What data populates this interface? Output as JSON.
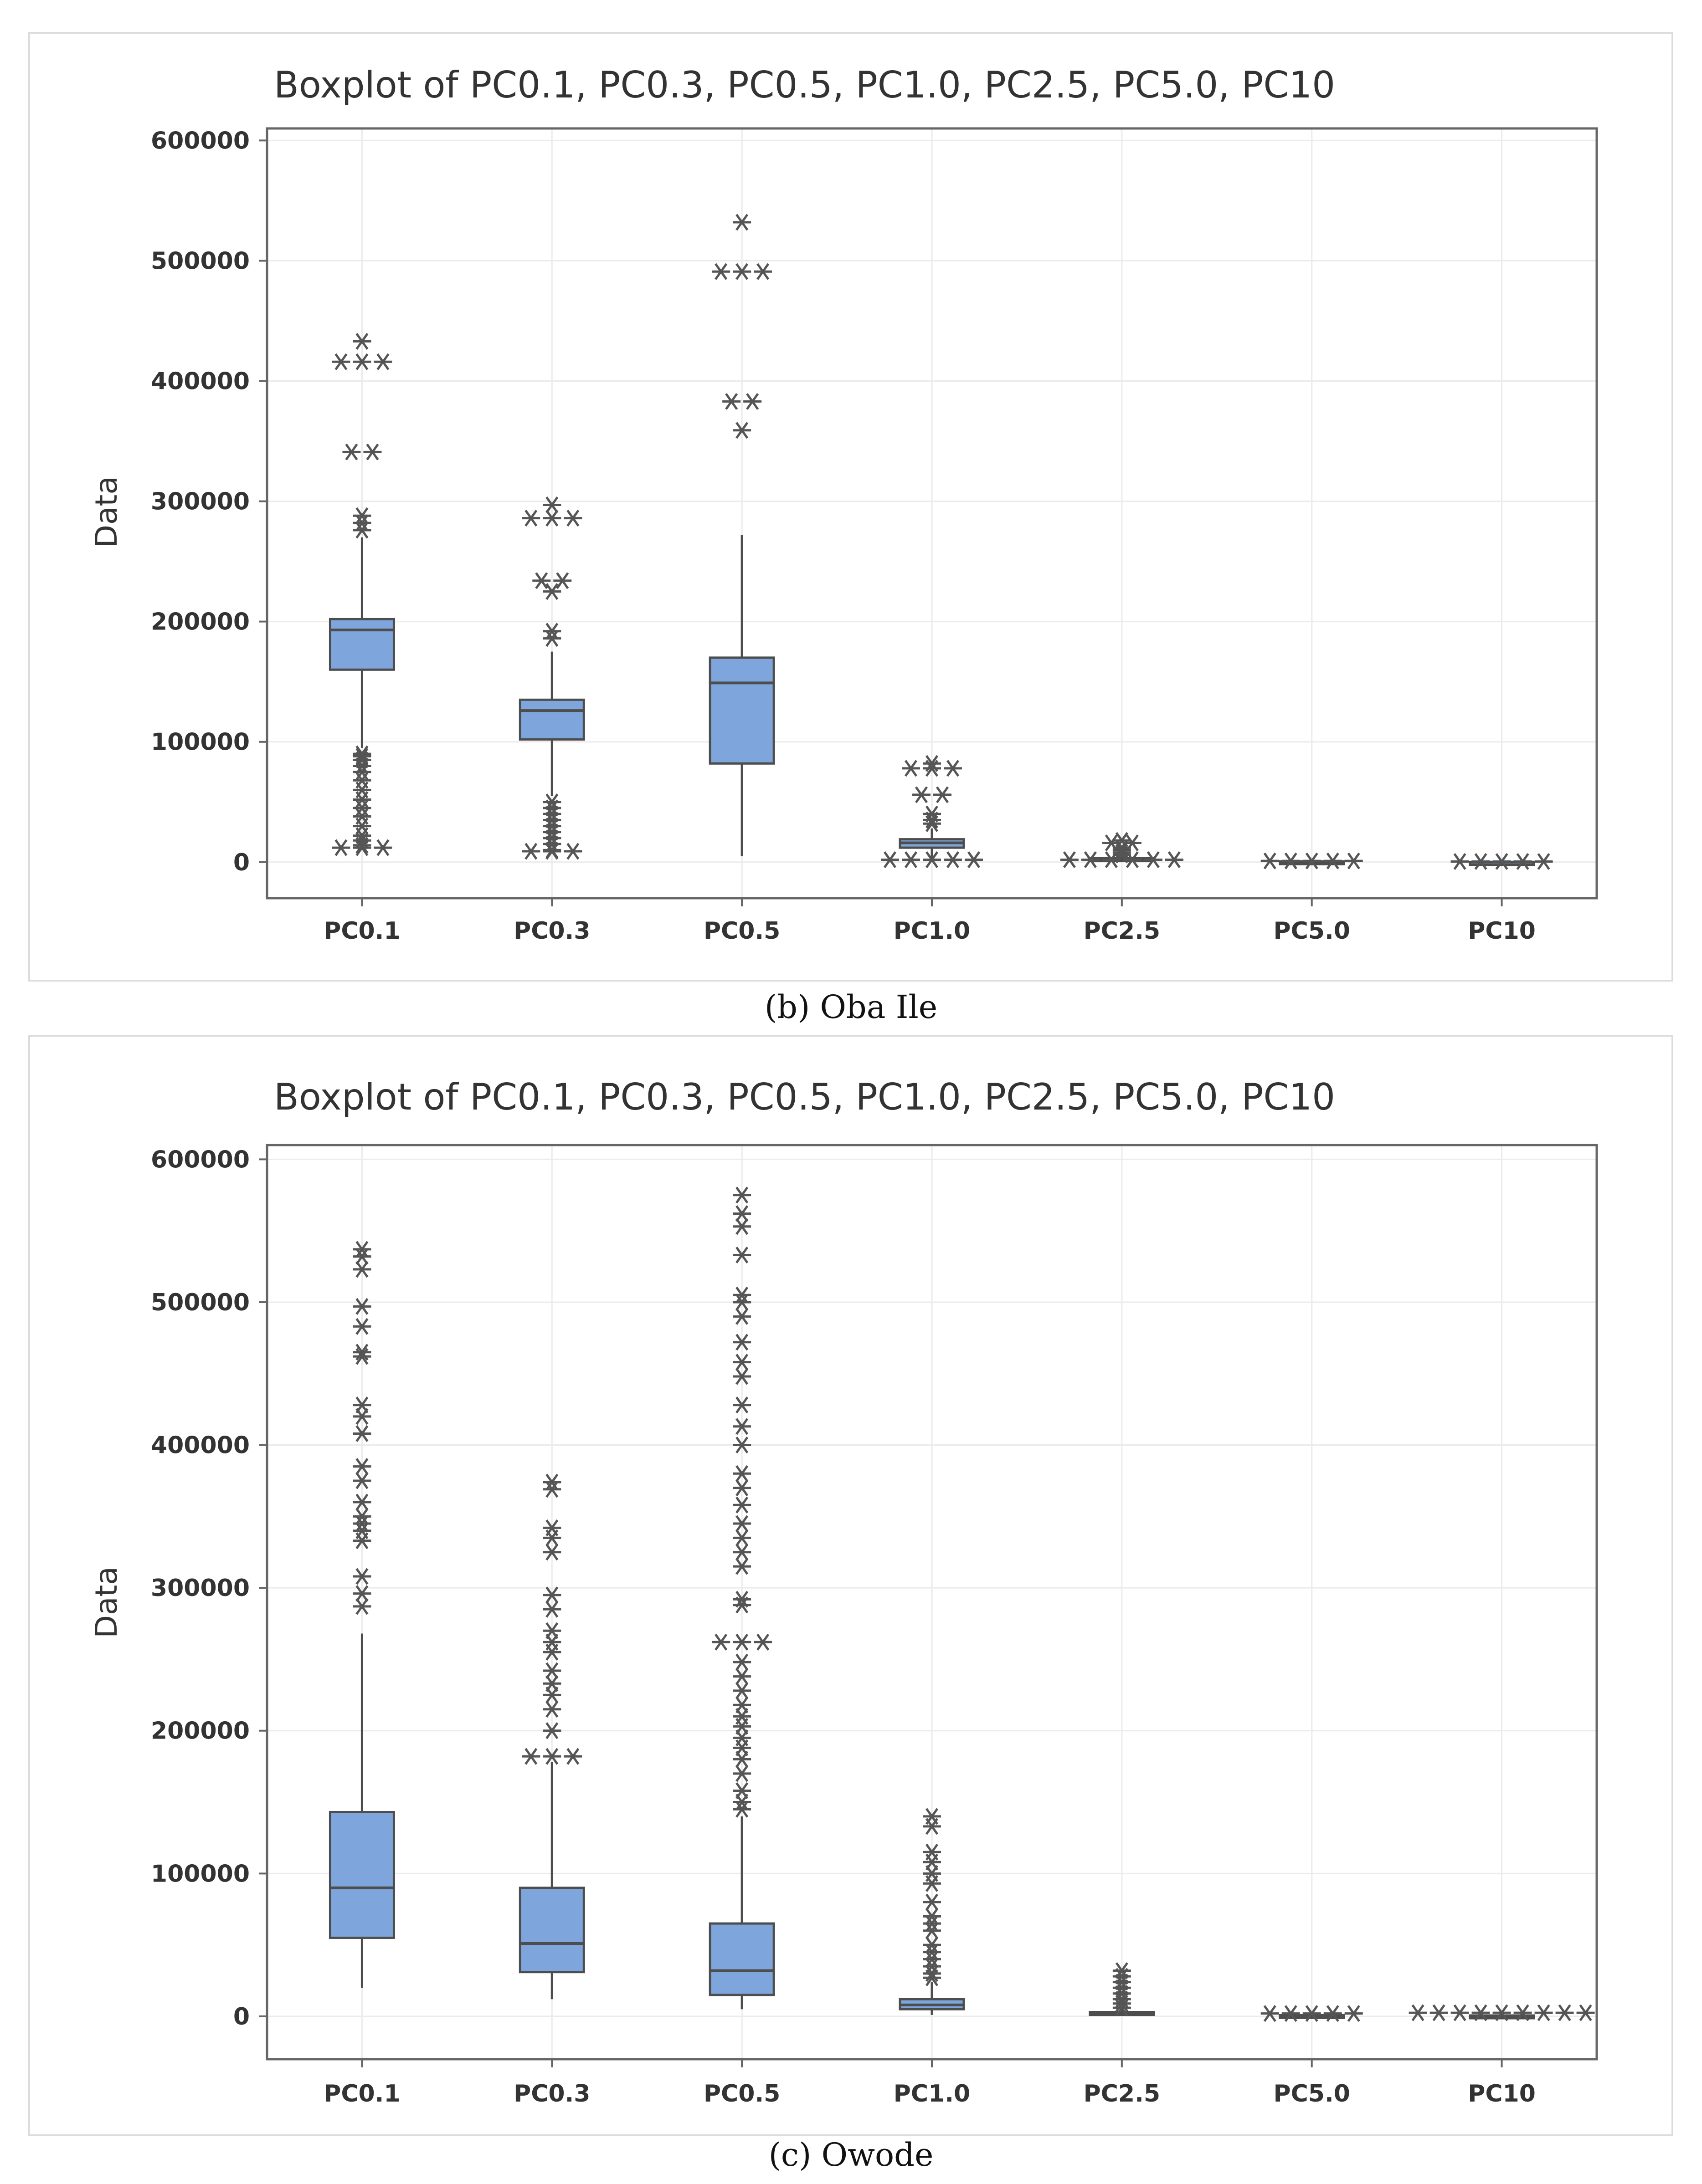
{
  "chart_data": [
    {
      "type": "boxplot",
      "title": "Boxplot of PC0.1, PC0.3, PC0.5, PC1.0, PC2.5, PC5.0, PC10",
      "caption": "(b) Oba Ile",
      "ylabel": "Data",
      "xlabel": "",
      "ylim": [
        -30000,
        610000
      ],
      "yticks": [
        0,
        100000,
        200000,
        300000,
        400000,
        500000,
        600000
      ],
      "ytick_labels": [
        "0",
        "100000",
        "200000",
        "300000",
        "400000",
        "500000",
        "600000"
      ],
      "categories": [
        "PC0.1",
        "PC0.3",
        "PC0.5",
        "PC1.0",
        "PC2.5",
        "PC5.0",
        "PC10"
      ],
      "boxes": [
        {
          "name": "PC0.1",
          "q1": 160000,
          "median": 193000,
          "q3": 202000,
          "whisker_low": 95000,
          "whisker_high": 270000,
          "outliers": [
            433000,
            416000,
            416000,
            416000,
            341000,
            341000,
            288000,
            282000,
            276000,
            90000,
            88000,
            85000,
            80000,
            75000,
            68000,
            60000,
            52000,
            45000,
            38000,
            30000,
            22000,
            18000,
            14000,
            12000,
            12000,
            12000
          ]
        },
        {
          "name": "PC0.3",
          "q1": 102000,
          "median": 126000,
          "q3": 135000,
          "whisker_low": 55000,
          "whisker_high": 175000,
          "outliers": [
            297000,
            286000,
            286000,
            286000,
            234000,
            234000,
            225000,
            192000,
            186000,
            50000,
            45000,
            40000,
            35000,
            30000,
            25000,
            20000,
            15000,
            10000,
            9000,
            9000,
            9000
          ]
        },
        {
          "name": "PC0.5",
          "q1": 82000,
          "median": 149000,
          "q3": 170000,
          "whisker_low": 5000,
          "whisker_high": 272000,
          "outliers": [
            532000,
            491000,
            491000,
            491000,
            383000,
            383000,
            359000
          ]
        },
        {
          "name": "PC1.0",
          "q1": 12000,
          "median": 16000,
          "q3": 19000,
          "whisker_low": 2000,
          "whisker_high": 28000,
          "outliers": [
            82000,
            78000,
            78000,
            78000,
            56000,
            56000,
            40000,
            35000,
            32000,
            2000,
            2000,
            2000,
            2000,
            2000
          ]
        },
        {
          "name": "PC2.5",
          "q1": 1500,
          "median": 2500,
          "q3": 3500,
          "whisker_low": 200,
          "whisker_high": 5000,
          "outliers": [
            18000,
            16000,
            16000,
            12000,
            10000,
            8000,
            6000,
            2000,
            2000,
            2000,
            2000,
            2000,
            2000
          ]
        },
        {
          "name": "PC5.0",
          "q1": 200,
          "median": 400,
          "q3": 600,
          "whisker_low": 0,
          "whisker_high": 900,
          "outliers": [
            1000,
            1000,
            1000,
            1000,
            1000
          ]
        },
        {
          "name": "PC10",
          "q1": 0,
          "median": 0,
          "q3": 0,
          "whisker_low": 0,
          "whisker_high": 0,
          "outliers": [
            500,
            500,
            500,
            500,
            500
          ]
        }
      ]
    },
    {
      "type": "boxplot",
      "title": "Boxplot of PC0.1, PC0.3, PC0.5, PC1.0, PC2.5, PC5.0, PC10",
      "caption": "(c) Owode",
      "ylabel": "Data",
      "xlabel": "",
      "ylim": [
        -30000,
        610000
      ],
      "yticks": [
        0,
        100000,
        200000,
        300000,
        400000,
        500000,
        600000
      ],
      "ytick_labels": [
        "0",
        "100000",
        "200000",
        "300000",
        "400000",
        "500000",
        "600000"
      ],
      "categories": [
        "PC0.1",
        "PC0.3",
        "PC0.5",
        "PC1.0",
        "PC2.5",
        "PC5.0",
        "PC10"
      ],
      "boxes": [
        {
          "name": "PC0.1",
          "q1": 55000,
          "median": 90000,
          "q3": 143000,
          "whisker_low": 20000,
          "whisker_high": 268000,
          "outliers": [
            537000,
            532000,
            523000,
            497000,
            483000,
            465000,
            462000,
            428000,
            420000,
            408000,
            385000,
            375000,
            360000,
            350000,
            345000,
            340000,
            333000,
            308000,
            296000,
            287000
          ]
        },
        {
          "name": "PC0.3",
          "q1": 31000,
          "median": 51000,
          "q3": 90000,
          "whisker_low": 12000,
          "whisker_high": 178000,
          "outliers": [
            374000,
            369000,
            342000,
            335000,
            325000,
            295000,
            285000,
            270000,
            262000,
            255000,
            242000,
            233000,
            225000,
            215000,
            200000,
            182000,
            182000,
            182000
          ]
        },
        {
          "name": "PC0.5",
          "q1": 15000,
          "median": 32000,
          "q3": 65000,
          "whisker_low": 5000,
          "whisker_high": 140000,
          "outliers": [
            575000,
            562000,
            553000,
            533000,
            505000,
            500000,
            490000,
            472000,
            458000,
            448000,
            428000,
            413000,
            400000,
            380000,
            370000,
            358000,
            345000,
            335000,
            325000,
            315000,
            292000,
            288000,
            262000,
            262000,
            262000,
            248000,
            238000,
            228000,
            218000,
            210000,
            203000,
            195000,
            188000,
            180000,
            170000,
            158000,
            150000,
            145000
          ]
        },
        {
          "name": "PC1.0",
          "q1": 5000,
          "median": 8000,
          "q3": 12000,
          "whisker_low": 1000,
          "whisker_high": 24000,
          "outliers": [
            140000,
            133000,
            115000,
            108000,
            100000,
            93000,
            80000,
            70000,
            65000,
            60000,
            50000,
            45000,
            40000,
            35000,
            30000,
            27000
          ]
        },
        {
          "name": "PC2.5",
          "q1": 1500,
          "median": 2200,
          "q3": 3000,
          "whisker_low": 500,
          "whisker_high": 4500,
          "outliers": [
            32000,
            28000,
            24000,
            20000,
            16000,
            12000,
            9000,
            6000
          ]
        },
        {
          "name": "PC5.0",
          "q1": 300,
          "median": 500,
          "q3": 800,
          "whisker_low": 0,
          "whisker_high": 1200,
          "outliers": [
            2000,
            2000,
            2000,
            2000,
            2000
          ]
        },
        {
          "name": "PC10",
          "q1": 200,
          "median": 400,
          "q3": 600,
          "whisker_low": 0,
          "whisker_high": 900,
          "outliers": [
            2500,
            2500,
            2500,
            2500,
            2500,
            2500,
            2500,
            2500,
            2500
          ]
        }
      ]
    }
  ],
  "colors": {
    "box_fill": "#7ea6dc",
    "box_stroke": "#4d4d4d",
    "outlier": "#555555",
    "grid": "#ebebeb",
    "frame": "#666666",
    "text": "#333333"
  }
}
